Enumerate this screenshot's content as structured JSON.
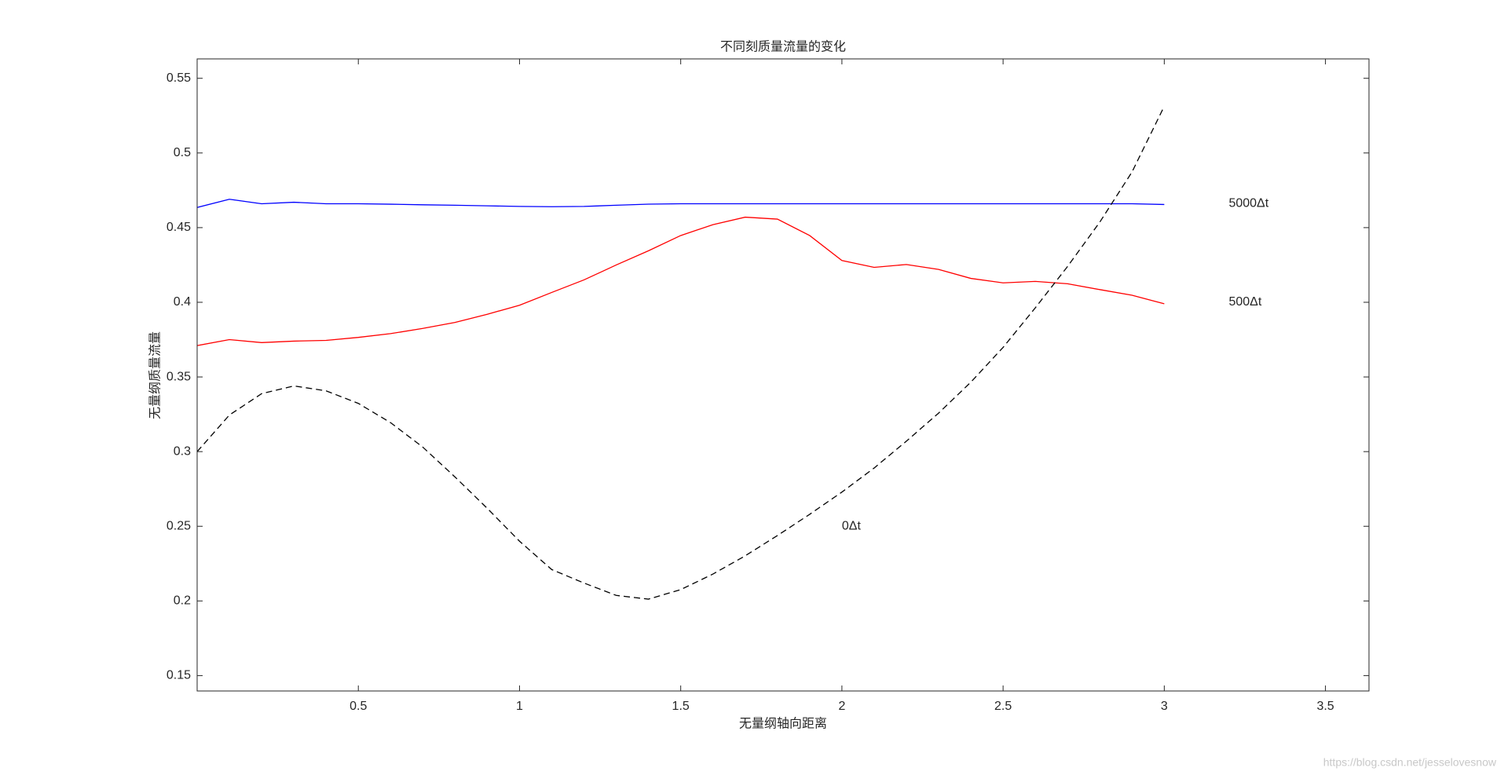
{
  "chart_data": {
    "type": "line",
    "title": "不同刻质量流量的变化",
    "x_label": "无量纲轴向距离",
    "y_label": "无量纲质量流量",
    "x": [
      0,
      0.1,
      0.2,
      0.3,
      0.4,
      0.5,
      0.6,
      0.7,
      0.8,
      0.9,
      1.0,
      1.1,
      1.2,
      1.3,
      1.4,
      1.5,
      1.6,
      1.7,
      1.8,
      1.9,
      2.0,
      2.1,
      2.2,
      2.3,
      2.4,
      2.5,
      2.6,
      2.7,
      2.8,
      2.9,
      3.0
    ],
    "series": [
      {
        "color": "#0000ff",
        "dash": "solid",
        "values": [
          0.4635,
          0.469,
          0.466,
          0.467,
          0.466,
          0.466,
          0.4657,
          0.4653,
          0.465,
          0.4646,
          0.4642,
          0.464,
          0.4642,
          0.465,
          0.4657,
          0.466,
          0.466,
          0.466,
          0.466,
          0.466,
          0.466,
          0.466,
          0.466,
          0.466,
          0.466,
          0.466,
          0.466,
          0.466,
          0.466,
          0.466,
          0.4655
        ]
      },
      {
        "color": "#ff0000",
        "dash": "solid",
        "values": [
          0.371,
          0.375,
          0.373,
          0.374,
          0.3745,
          0.3765,
          0.379,
          0.3825,
          0.3865,
          0.392,
          0.398,
          0.4066,
          0.415,
          0.425,
          0.4345,
          0.4447,
          0.452,
          0.457,
          0.4557,
          0.4447,
          0.428,
          0.4234,
          0.4253,
          0.422,
          0.416,
          0.413,
          0.414,
          0.4124,
          0.4085,
          0.4047,
          0.399
        ]
      },
      {
        "color": "#000000",
        "dash": "dashed",
        "values": [
          0.3,
          0.3245,
          0.3388,
          0.344,
          0.3407,
          0.3323,
          0.3194,
          0.303,
          0.283,
          0.262,
          0.24,
          0.221,
          0.212,
          0.2037,
          0.2012,
          0.2076,
          0.218,
          0.2302,
          0.2438,
          0.258,
          0.2729,
          0.289,
          0.307,
          0.3258,
          0.3465,
          0.3698,
          0.3963,
          0.424,
          0.4537,
          0.4873,
          0.5313
        ]
      }
    ],
    "annotations": [
      {
        "text": "5000Δt",
        "x": 3.2,
        "y": 0.466
      },
      {
        "text": "500Δt",
        "x": 3.2,
        "y": 0.4
      },
      {
        "text": "0Δt",
        "x": 2.0,
        "y": 0.25
      }
    ],
    "xlim": [
      0,
      3.635
    ],
    "ylim": [
      0.1397,
      0.563
    ],
    "xticks": [
      0.5,
      1,
      1.5,
      2,
      2.5,
      3,
      3.5
    ],
    "yticks": [
      0.15,
      0.2,
      0.25,
      0.3,
      0.35,
      0.4,
      0.45,
      0.5,
      0.55
    ],
    "watermark": "https://blog.csdn.net/jesselovesnow"
  }
}
